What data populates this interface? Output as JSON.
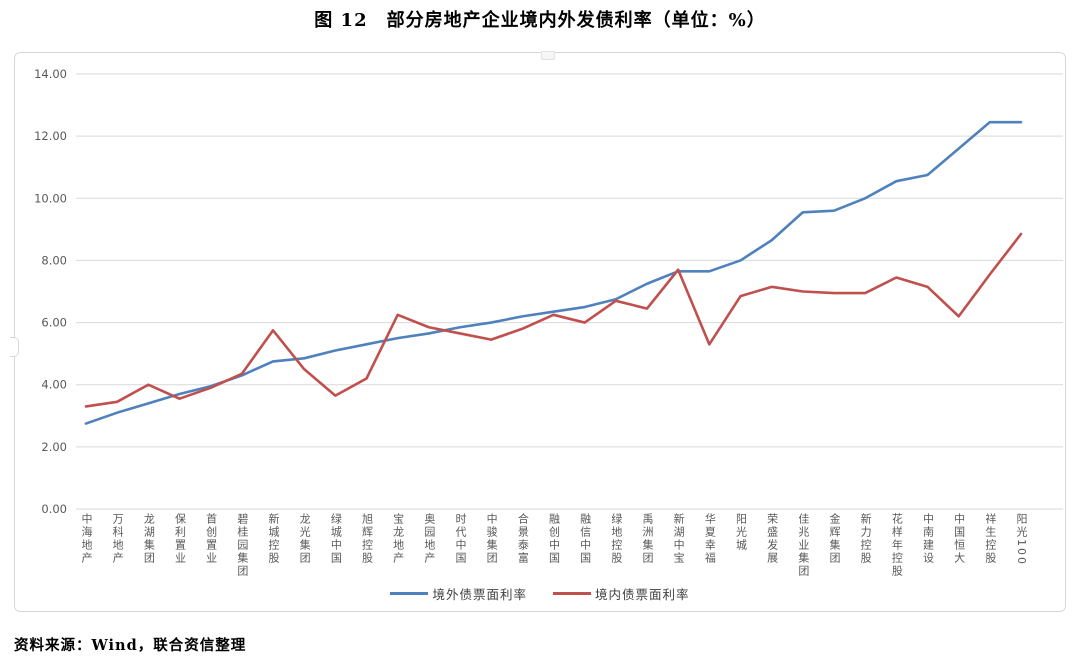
{
  "title": "图 12　部分房地产企业境内外发债利率（单位：%）",
  "source_note": "资料来源：Wind，联合资信整理",
  "colors": {
    "series_offshore": "#4F81BD",
    "series_onshore": "#C0504D",
    "gridline": "#d9d9d9",
    "axis_text": "#595959",
    "frame_border": "#d8d8d8"
  },
  "chart_data": {
    "type": "line",
    "title": "图 12　部分房地产企业境内外发债利率（单位：%）",
    "xlabel": "",
    "ylabel": "",
    "ylim": [
      0,
      14
    ],
    "yticks": [
      "0.00",
      "2.00",
      "4.00",
      "6.00",
      "8.00",
      "10.00",
      "12.00",
      "14.00"
    ],
    "grid": true,
    "legend_position": "bottom-center",
    "categories": [
      "中海地产",
      "万科地产",
      "龙湖集团",
      "保利置业",
      "首创置业",
      "碧桂园集团",
      "新城控股",
      "龙光集团",
      "绿城中国",
      "旭辉控股",
      "宝龙地产",
      "奥园地产",
      "时代中国",
      "中骏集团",
      "合景泰富",
      "融创中国",
      "融信中国",
      "绿地控股",
      "禹洲集团",
      "新湖中宝",
      "华夏幸福",
      "阳光城",
      "荣盛发展",
      "佳兆业集团",
      "金辉集团",
      "新力控股",
      "花样年控股",
      "中南建设",
      "中国恒大",
      "祥生控股",
      "阳光100"
    ],
    "series": [
      {
        "name": "境外债票面利率",
        "color": "#4F81BD",
        "values": [
          2.75,
          3.1,
          3.4,
          3.7,
          3.95,
          4.3,
          4.75,
          4.85,
          5.1,
          5.3,
          5.5,
          5.65,
          5.85,
          6.0,
          6.2,
          6.35,
          6.5,
          6.75,
          7.25,
          7.65,
          7.65,
          8.0,
          8.65,
          9.55,
          9.6,
          10.0,
          10.55,
          10.75,
          11.6,
          12.45,
          12.45
        ]
      },
      {
        "name": "境内债票面利率",
        "color": "#C0504D",
        "values": [
          3.3,
          3.45,
          4.0,
          3.55,
          3.9,
          4.35,
          5.75,
          4.5,
          3.65,
          4.2,
          6.25,
          5.85,
          5.65,
          5.45,
          5.8,
          6.25,
          6.0,
          6.7,
          6.45,
          7.7,
          5.3,
          6.85,
          7.15,
          7.0,
          6.95,
          6.95,
          7.45,
          7.15,
          6.2,
          7.55,
          8.85
        ]
      }
    ]
  }
}
